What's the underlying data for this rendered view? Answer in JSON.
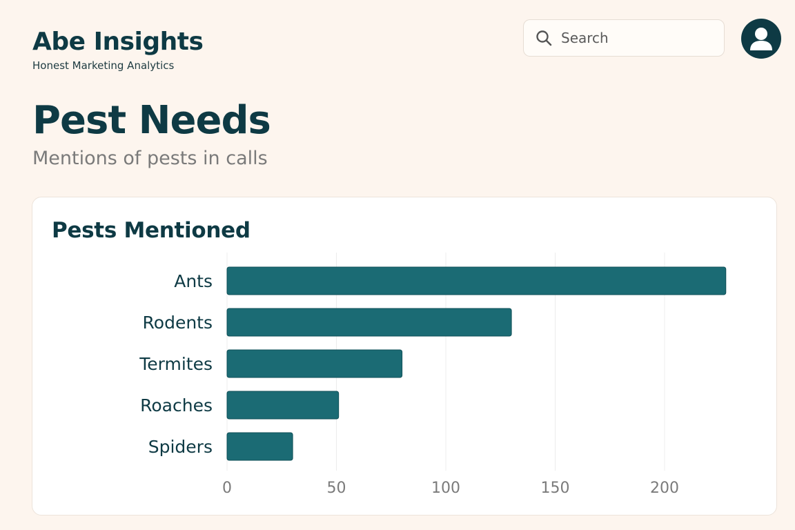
{
  "header": {
    "brand_name": "Abe Insights",
    "brand_tagline": "Honest Marketing Analytics",
    "search_placeholder": "Search"
  },
  "icons": {
    "search": "search-icon",
    "avatar": "user-avatar-icon"
  },
  "page": {
    "title": "Pest Needs",
    "subtitle": "Mentions of pests in calls"
  },
  "card": {
    "title": "Pests Mentioned"
  },
  "colors": {
    "bar": "#1b6b74",
    "bar_stroke": "#0f4f57",
    "grid": "#ececec",
    "accent": "#0e3a44"
  },
  "chart_data": {
    "type": "bar",
    "orientation": "horizontal",
    "categories": [
      "Ants",
      "Rodents",
      "Termites",
      "Roaches",
      "Spiders"
    ],
    "values": [
      228,
      130,
      80,
      51,
      30
    ],
    "xlim": [
      0,
      230
    ],
    "xticks": [
      0,
      50,
      100,
      150,
      200
    ],
    "grid": true,
    "title": "",
    "xlabel": "",
    "ylabel": ""
  }
}
